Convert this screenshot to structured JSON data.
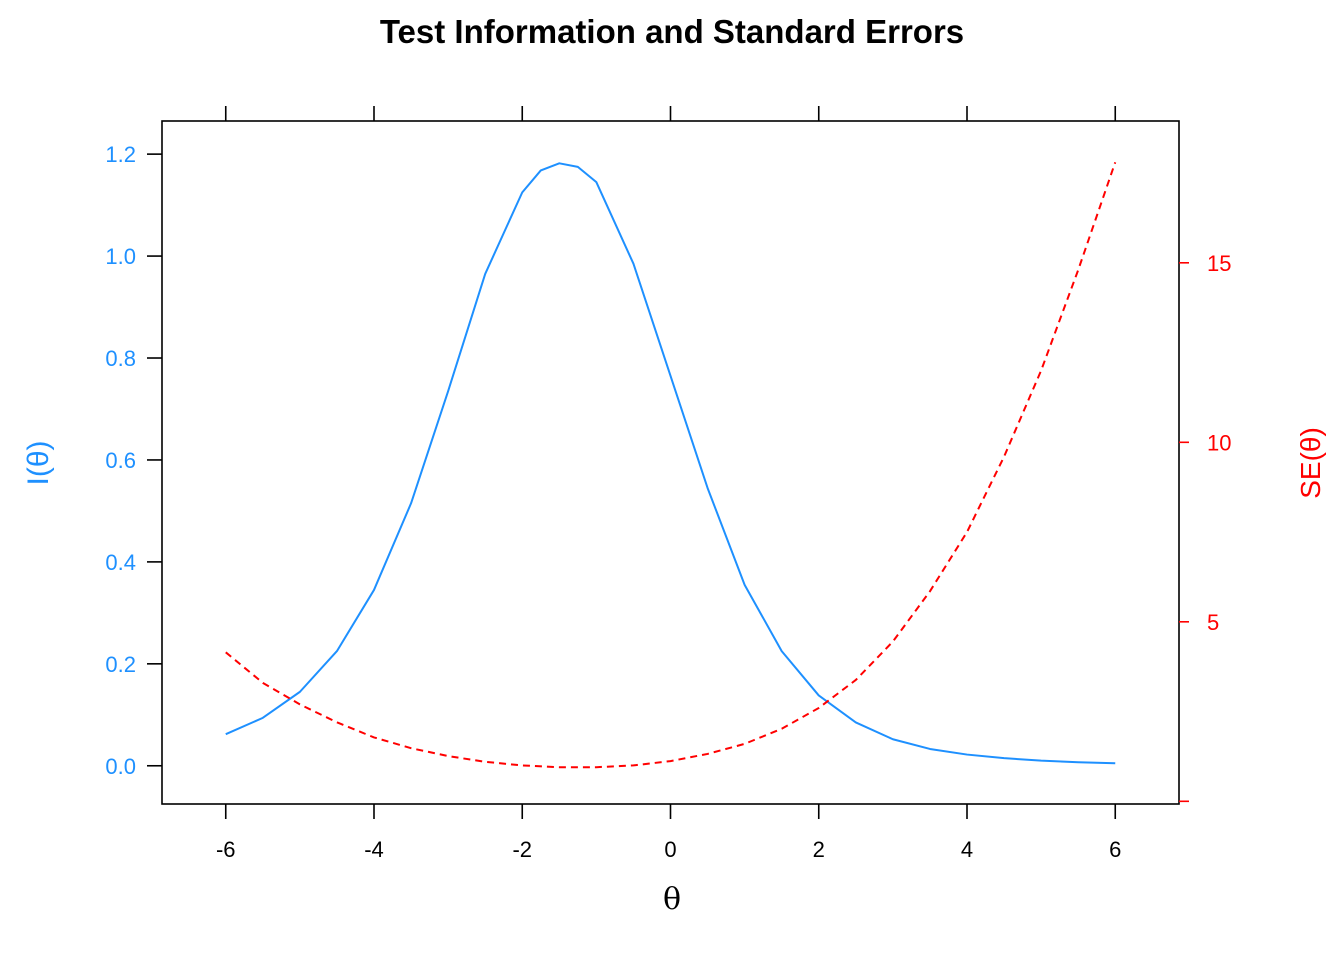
{
  "chart_data": {
    "type": "line",
    "title": "Test Information and Standard Errors",
    "xlabel": "θ",
    "ylabel_left": "I(θ)",
    "ylabel_right": "SE(θ)",
    "xlim": [
      -6.86,
      6.86
    ],
    "ylim_left": [
      -0.075,
      1.265
    ],
    "ylim_right": [
      -0.075,
      18.95
    ],
    "x_ticks": [
      -6,
      -4,
      -2,
      0,
      2,
      4,
      6
    ],
    "x_tick_labels": [
      "-6",
      "-4",
      "-2",
      "0",
      "2",
      "4",
      "6"
    ],
    "y_left_ticks": [
      0.0,
      0.2,
      0.4,
      0.6,
      0.8,
      1.0,
      1.2
    ],
    "y_left_tick_labels": [
      "0.0",
      "0.2",
      "0.4",
      "0.6",
      "0.8",
      "1.0",
      "1.2"
    ],
    "y_right_ticks": [
      0,
      5,
      10,
      15
    ],
    "y_right_tick_labels": [
      "",
      "5",
      "10",
      "15"
    ],
    "grid": false,
    "colors": {
      "info": "#1E90FF",
      "se": "#FF0000",
      "axes": "#000000"
    },
    "series": [
      {
        "axis": "left",
        "line_style": "solid",
        "x": [
          -6.0,
          -5.5,
          -5.0,
          -4.5,
          -4.0,
          -3.5,
          -3.0,
          -2.5,
          -2.0,
          -1.75,
          -1.5,
          -1.25,
          -1.0,
          -0.5,
          0.0,
          0.5,
          1.0,
          1.5,
          2.0,
          2.5,
          3.0,
          3.5,
          4.0,
          4.5,
          5.0,
          5.5,
          6.0
        ],
        "y": [
          0.062,
          0.094,
          0.145,
          0.225,
          0.345,
          0.515,
          0.735,
          0.965,
          1.125,
          1.168,
          1.182,
          1.175,
          1.145,
          0.985,
          0.765,
          0.545,
          0.355,
          0.225,
          0.138,
          0.085,
          0.052,
          0.033,
          0.022,
          0.015,
          0.01,
          0.007,
          0.005
        ]
      },
      {
        "axis": "right",
        "line_style": "dashed",
        "x": [
          -6.0,
          -5.5,
          -5.0,
          -4.5,
          -4.0,
          -3.5,
          -3.0,
          -2.5,
          -2.0,
          -1.5,
          -1.0,
          -0.5,
          0.0,
          0.5,
          1.0,
          1.5,
          2.0,
          2.5,
          3.0,
          3.5,
          4.0,
          4.5,
          5.0,
          5.5,
          6.0
        ],
        "y": [
          4.15,
          3.3,
          2.7,
          2.2,
          1.78,
          1.48,
          1.26,
          1.1,
          1.0,
          0.95,
          0.95,
          1.0,
          1.12,
          1.32,
          1.6,
          2.02,
          2.6,
          3.38,
          4.45,
          5.85,
          7.5,
          9.6,
          12.0,
          14.8,
          17.8
        ]
      }
    ]
  }
}
